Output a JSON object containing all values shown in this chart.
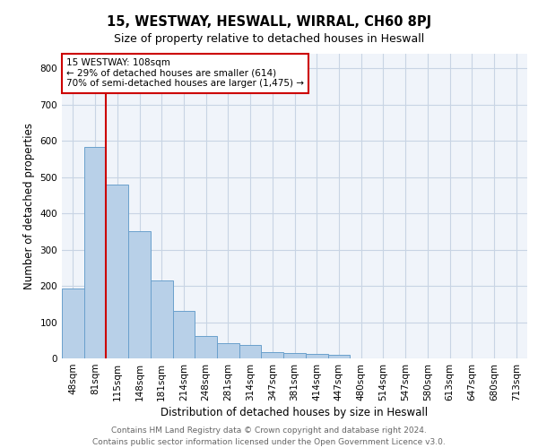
{
  "title1": "15, WESTWAY, HESWALL, WIRRAL, CH60 8PJ",
  "title2": "Size of property relative to detached houses in Heswall",
  "xlabel": "Distribution of detached houses by size in Heswall",
  "ylabel": "Number of detached properties",
  "footnote1": "Contains HM Land Registry data © Crown copyright and database right 2024.",
  "footnote2": "Contains public sector information licensed under the Open Government Licence v3.0.",
  "annotation_line1": "15 WESTWAY: 108sqm",
  "annotation_line2": "← 29% of detached houses are smaller (614)",
  "annotation_line3": "70% of semi-detached houses are larger (1,475) →",
  "bar_color": "#b8d0e8",
  "bar_edge_color": "#6aa0cc",
  "annotation_line_color": "#cc0000",
  "annotation_box_edge_color": "#cc0000",
  "background_color": "#ffffff",
  "plot_bg_color": "#f0f4fa",
  "grid_color": "#c8d4e4",
  "categories": [
    "48sqm",
    "81sqm",
    "115sqm",
    "148sqm",
    "181sqm",
    "214sqm",
    "248sqm",
    "281sqm",
    "314sqm",
    "347sqm",
    "381sqm",
    "414sqm",
    "447sqm",
    "480sqm",
    "514sqm",
    "547sqm",
    "580sqm",
    "613sqm",
    "647sqm",
    "680sqm",
    "713sqm"
  ],
  "values": [
    192,
    584,
    480,
    352,
    216,
    130,
    62,
    42,
    36,
    18,
    15,
    12,
    9,
    0,
    0,
    0,
    0,
    0,
    0,
    0,
    0
  ],
  "red_line_x": 1.5,
  "ylim": [
    0,
    840
  ],
  "yticks": [
    0,
    100,
    200,
    300,
    400,
    500,
    600,
    700,
    800
  ],
  "title1_fontsize": 10.5,
  "title2_fontsize": 9,
  "tick_fontsize": 7.5,
  "ylabel_fontsize": 8.5,
  "xlabel_fontsize": 8.5,
  "footnote_fontsize": 6.5,
  "annotation_fontsize": 7.5
}
